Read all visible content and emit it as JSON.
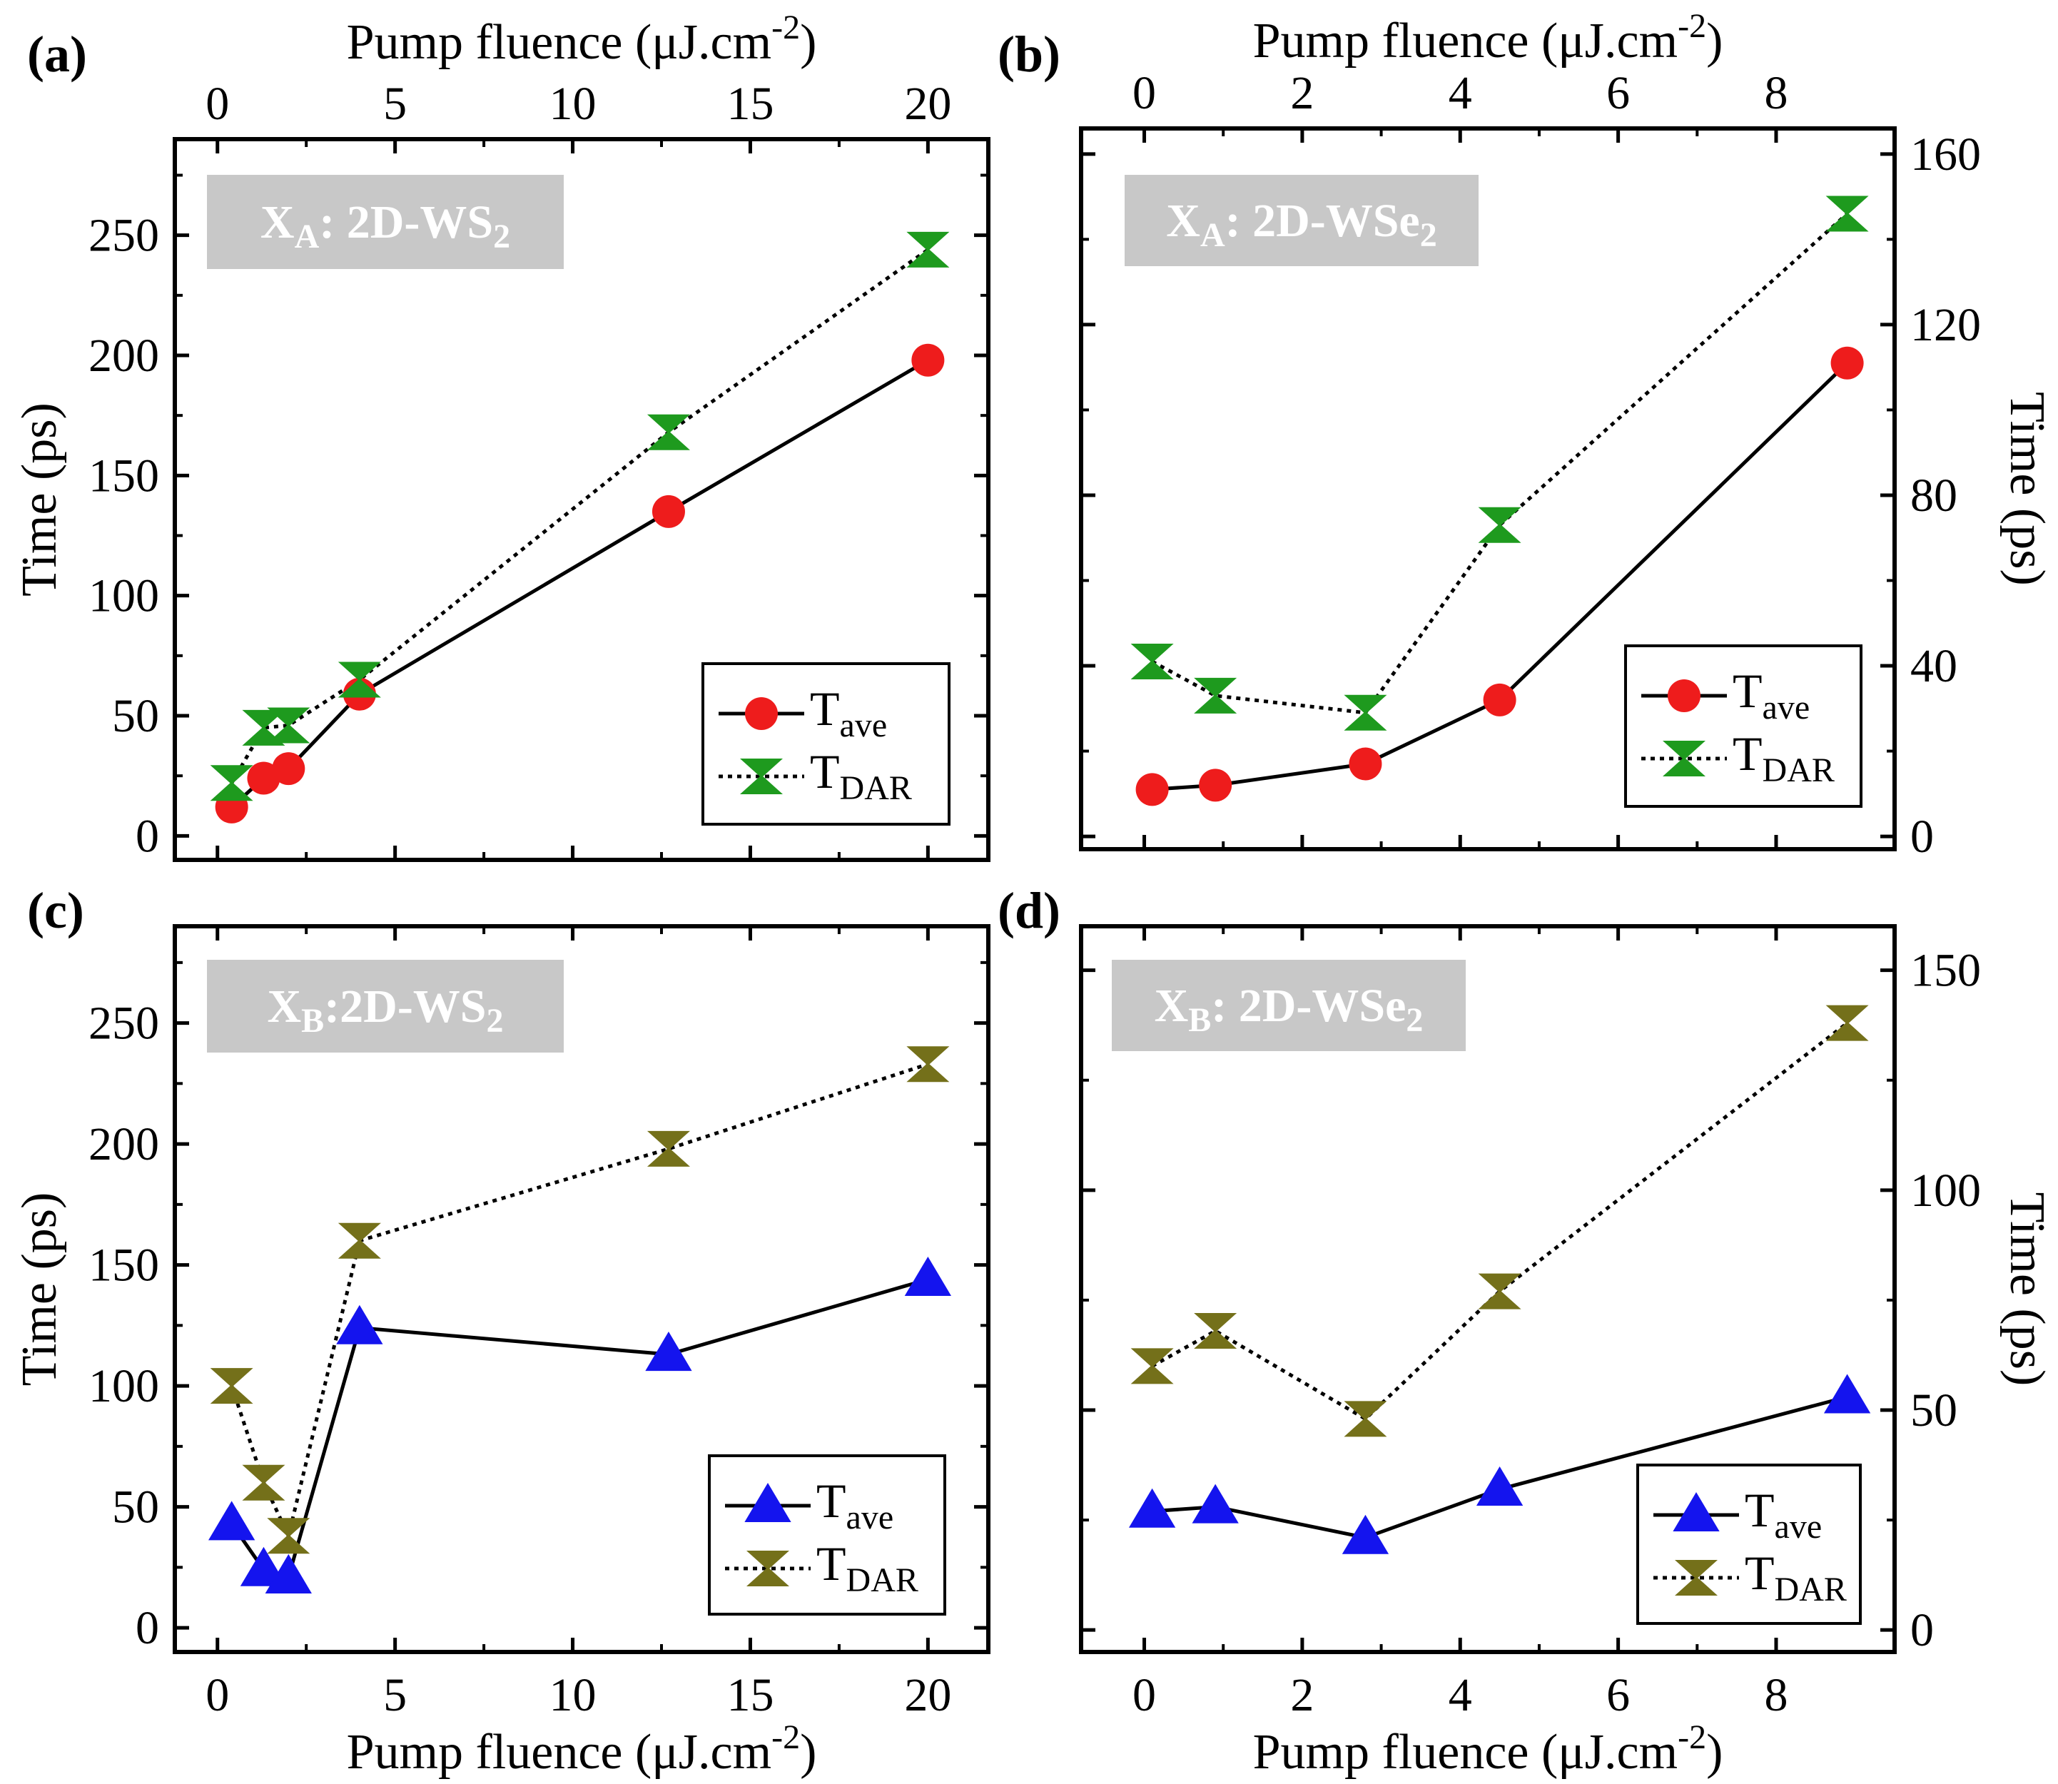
{
  "figure": {
    "x_axis_title": "Pump fluence (μJ.cm",
    "x_axis_title_sup": "-2",
    "x_axis_title_close": ")",
    "y_axis_title": "Time (ps)"
  },
  "legend": {
    "ave_main": "T",
    "ave_sub": "ave",
    "dar_main": "T",
    "dar_sub": "DAR"
  },
  "colors": {
    "ave_ws2_marker": "#ee1c1c",
    "dar_green": "#1e9a1e",
    "ave_blue": "#1414ee",
    "dar_olive": "#74701a",
    "badge_bg": "#c8c8c8"
  },
  "chart_data": [
    {
      "id": "a",
      "panel_label": "(a)",
      "type": "line",
      "badge": {
        "main": "X",
        "sub": "A",
        "rest": ": 2D-WS",
        "rest_sub": "2"
      },
      "x_axis_position": "top",
      "y_axis_position": "left",
      "xlim": [
        -1.2,
        21.7
      ],
      "ylim": [
        -10,
        290
      ],
      "xticks": [
        0,
        5,
        10,
        15,
        20
      ],
      "yticks": [
        0,
        50,
        100,
        150,
        200,
        250
      ],
      "series": [
        {
          "name": "T_ave",
          "marker": "circle",
          "line": "solid",
          "color": "#ee1c1c",
          "x": [
            0.4,
            1.3,
            2.0,
            4.0,
            12.7,
            20.0
          ],
          "y": [
            12,
            24,
            28,
            59,
            135,
            198
          ]
        },
        {
          "name": "T_DAR",
          "marker": "hourglass",
          "line": "dotted",
          "color": "#1e9a1e",
          "x": [
            0.4,
            1.3,
            2.0,
            4.0,
            12.7,
            20.0
          ],
          "y": [
            22,
            45,
            46,
            65,
            168,
            244
          ]
        }
      ],
      "legend_position": "bottom-right"
    },
    {
      "id": "b",
      "panel_label": "(b)",
      "type": "line",
      "badge": {
        "main": "X",
        "sub": "A",
        "rest": ": 2D-WSe",
        "rest_sub": "2"
      },
      "x_axis_position": "top",
      "y_axis_position": "right",
      "xlim": [
        -0.8,
        9.5
      ],
      "ylim": [
        -3,
        166
      ],
      "xticks": [
        0,
        2,
        4,
        6,
        8
      ],
      "yticks": [
        0,
        40,
        80,
        120,
        160
      ],
      "series": [
        {
          "name": "T_ave",
          "marker": "circle",
          "line": "solid",
          "color": "#ee1c1c",
          "x": [
            0.1,
            0.9,
            2.8,
            4.5,
            8.9
          ],
          "y": [
            11,
            12,
            17,
            32,
            111
          ]
        },
        {
          "name": "T_DAR",
          "marker": "hourglass",
          "line": "dotted",
          "color": "#1e9a1e",
          "x": [
            0.1,
            0.9,
            2.8,
            4.5,
            8.9
          ],
          "y": [
            41,
            33,
            29,
            73,
            146
          ]
        }
      ],
      "legend_position": "bottom-right"
    },
    {
      "id": "c",
      "panel_label": "(c)",
      "type": "line",
      "badge": {
        "main": "X",
        "sub": "B",
        "rest": ":2D-WS",
        "rest_sub": "2"
      },
      "x_axis_position": "bottom",
      "y_axis_position": "left",
      "xlim": [
        -1.2,
        21.7
      ],
      "ylim": [
        -10,
        290
      ],
      "xticks": [
        0,
        5,
        10,
        15,
        20
      ],
      "yticks": [
        0,
        50,
        100,
        150,
        200,
        250
      ],
      "series": [
        {
          "name": "T_ave",
          "marker": "triangle-up",
          "line": "solid",
          "color": "#1414ee",
          "x": [
            0.4,
            1.3,
            2.0,
            4.0,
            12.7,
            20.0
          ],
          "y": [
            43,
            24,
            21,
            124,
            113,
            144
          ]
        },
        {
          "name": "T_DAR",
          "marker": "hourglass",
          "line": "dotted",
          "color": "#74701a",
          "x": [
            0.4,
            1.3,
            2.0,
            4.0,
            12.7,
            20.0
          ],
          "y": [
            100,
            60,
            38,
            160,
            198,
            233
          ]
        }
      ],
      "legend_position": "bottom-right"
    },
    {
      "id": "d",
      "panel_label": "(d)",
      "type": "line",
      "badge": {
        "main": "X",
        "sub": "B",
        "rest": ": 2D-WSe",
        "rest_sub": "2"
      },
      "x_axis_position": "bottom",
      "y_axis_position": "right",
      "xlim": [
        -0.8,
        9.5
      ],
      "ylim": [
        -5,
        160
      ],
      "xticks": [
        0,
        2,
        4,
        6,
        8
      ],
      "yticks": [
        0,
        50,
        100,
        150
      ],
      "series": [
        {
          "name": "T_ave",
          "marker": "triangle-up",
          "line": "solid",
          "color": "#1414ee",
          "x": [
            0.1,
            0.9,
            2.8,
            4.5,
            8.9
          ],
          "y": [
            27,
            28,
            21,
            32,
            53
          ]
        },
        {
          "name": "T_DAR",
          "marker": "hourglass",
          "line": "dotted",
          "color": "#74701a",
          "x": [
            0.1,
            0.9,
            2.8,
            4.5,
            8.9
          ],
          "y": [
            60,
            68,
            48,
            77,
            138
          ]
        }
      ],
      "legend_position": "bottom-right"
    }
  ]
}
